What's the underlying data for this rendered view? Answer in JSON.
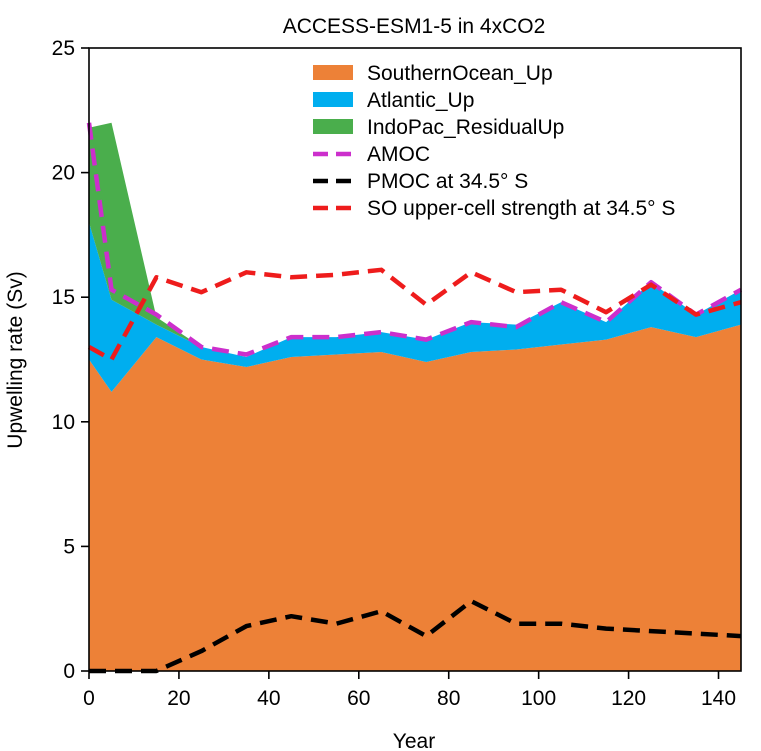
{
  "chart_data": {
    "type": "area",
    "title": "ACCESS-ESM1-5 in 4xCO2",
    "xlabel": "Year",
    "ylabel": "Upwelling rate (Sv)",
    "xlim": [
      0,
      145
    ],
    "ylim": [
      0,
      25
    ],
    "xticks": [
      0,
      20,
      40,
      60,
      80,
      100,
      120,
      140
    ],
    "yticks": [
      0,
      5,
      10,
      15,
      20,
      25
    ],
    "grid": false,
    "legend_position": "top-right",
    "x": [
      0,
      5,
      15,
      25,
      35,
      45,
      55,
      65,
      75,
      85,
      95,
      105,
      115,
      125,
      135,
      145
    ],
    "stacked_areas": [
      {
        "name": "SouthernOcean_Up",
        "color": "#ed8137",
        "values": [
          12.5,
          11.2,
          13.4,
          12.5,
          12.2,
          12.6,
          12.7,
          12.8,
          12.4,
          12.8,
          12.9,
          13.1,
          13.3,
          13.8,
          13.4,
          13.9
        ]
      },
      {
        "name": "Atlantic_Up",
        "color": "#00aeef",
        "values": [
          5.5,
          3.7,
          0.5,
          0.5,
          0.4,
          0.8,
          0.7,
          0.8,
          0.9,
          1.2,
          1.0,
          1.7,
          0.7,
          1.8,
          0.9,
          1.4
        ]
      },
      {
        "name": "IndoPac_ResidualUp",
        "color": "#4aae4c",
        "values": [
          3.8,
          7.1,
          0.3,
          0.0,
          0.0,
          0.0,
          0.0,
          0.0,
          0.0,
          0.0,
          0.0,
          0.0,
          0.0,
          0.0,
          0.0,
          0.0
        ]
      }
    ],
    "lines": [
      {
        "name": "AMOC",
        "color": "#cc2fcc",
        "style": "dashed",
        "values": [
          22.0,
          15.3,
          14.3,
          13.0,
          12.7,
          13.4,
          13.4,
          13.6,
          13.3,
          14.0,
          13.8,
          14.8,
          14.0,
          15.6,
          14.3,
          15.3
        ]
      },
      {
        "name": "PMOC at 34.5° S",
        "color": "#000000",
        "style": "dashed",
        "values": [
          0.0,
          0.0,
          0.0,
          0.8,
          1.8,
          2.2,
          1.9,
          2.4,
          1.4,
          2.8,
          1.9,
          1.9,
          1.7,
          1.6,
          1.5,
          1.4
        ]
      },
      {
        "name": "SO upper-cell strength at 34.5° S",
        "color": "#ee1c1c",
        "style": "dashed",
        "values": [
          13.0,
          12.5,
          15.8,
          15.2,
          16.0,
          15.8,
          15.9,
          16.1,
          14.7,
          16.0,
          15.2,
          15.3,
          14.4,
          15.5,
          14.3,
          14.8
        ]
      }
    ]
  }
}
